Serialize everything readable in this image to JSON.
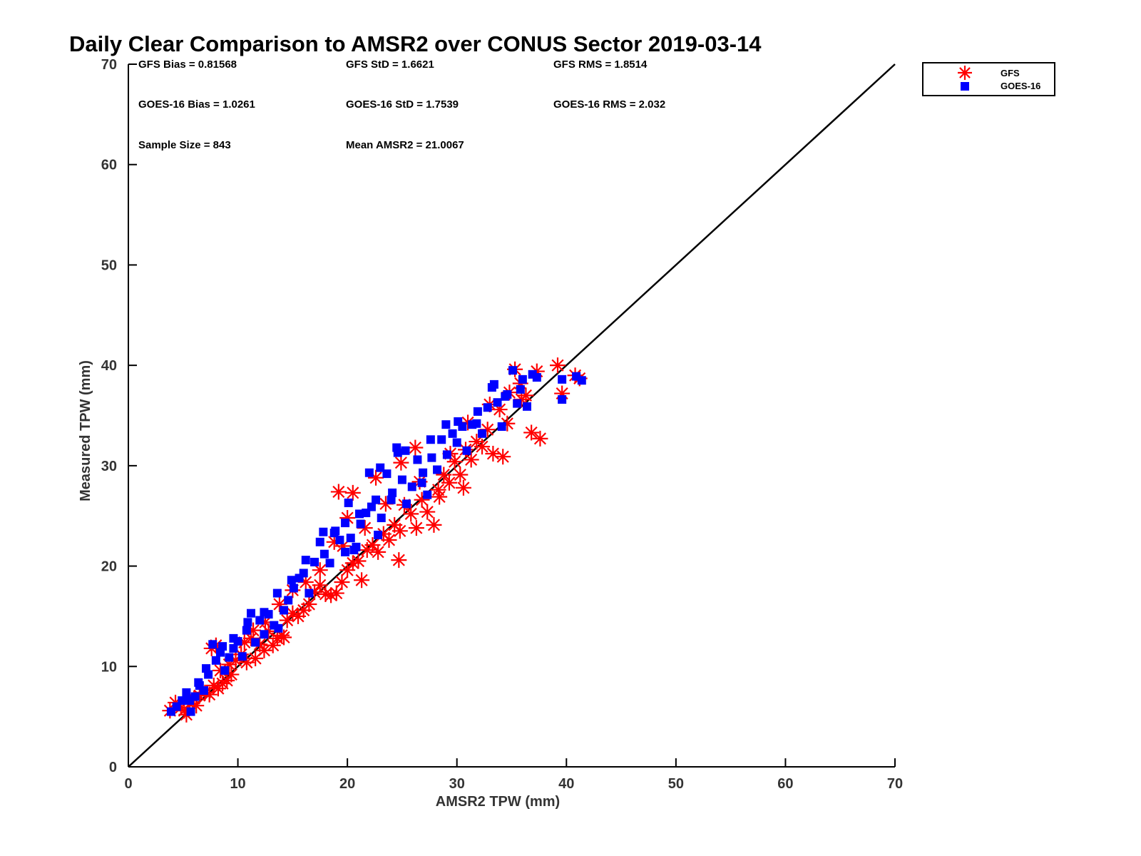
{
  "chart_data": {
    "type": "scatter",
    "title": "Daily Clear Comparison to AMSR2 over CONUS Sector 2019-03-14",
    "xlabel": "AMSR2 TPW (mm)",
    "ylabel": "Measured TPW (mm)",
    "xlim": [
      0,
      70
    ],
    "ylim": [
      0,
      70
    ],
    "xticks": [
      "0",
      "10",
      "20",
      "30",
      "40",
      "50",
      "60",
      "70"
    ],
    "yticks": [
      "0",
      "10",
      "20",
      "30",
      "40",
      "50",
      "60",
      "70"
    ],
    "grid": false,
    "legend_position": "top-right, outside",
    "reference_line": {
      "x": [
        0,
        70
      ],
      "y": [
        0,
        70
      ],
      "color": "#000000"
    },
    "stats": {
      "gfs_bias": "GFS Bias = 0.81568",
      "gfs_std": "GFS StD = 1.6621",
      "gfs_rms": "GFS RMS = 1.8514",
      "goes_bias": "GOES-16 Bias = 1.0261",
      "goes_std": "GOES-16 StD = 1.7539",
      "goes_rms": "GOES-16 RMS = 2.032",
      "sample_size": "Sample Size = 843",
      "mean_amsr2": "Mean AMSR2 = 21.0067"
    },
    "series": [
      {
        "name": "GFS",
        "marker": "asterisk",
        "color": "#ff0000",
        "points": [
          [
            3.8,
            5.6
          ],
          [
            4.3,
            6.4
          ],
          [
            4.8,
            5.9
          ],
          [
            5.3,
            5.2
          ],
          [
            5.6,
            6.3
          ],
          [
            6.0,
            6.8
          ],
          [
            6.5,
            7.1
          ],
          [
            7.0,
            7.4
          ],
          [
            7.4,
            7.2
          ],
          [
            7.8,
            8.1
          ],
          [
            8.2,
            7.8
          ],
          [
            8.6,
            8.3
          ],
          [
            9.0,
            8.6
          ],
          [
            9.4,
            9.2
          ],
          [
            7.6,
            11.8
          ],
          [
            8.0,
            12.1
          ],
          [
            9.8,
            10.6
          ],
          [
            10.3,
            11.2
          ],
          [
            10.8,
            10.4
          ],
          [
            11.2,
            12.8
          ],
          [
            11.6,
            10.8
          ],
          [
            12.0,
            12.2
          ],
          [
            12.4,
            11.6
          ],
          [
            12.8,
            13.5
          ],
          [
            13.2,
            12.1
          ],
          [
            13.6,
            12.8
          ],
          [
            14.0,
            13.1
          ],
          [
            14.5,
            14.6
          ],
          [
            15.0,
            15.3
          ],
          [
            15.5,
            15.0
          ],
          [
            16.0,
            15.6
          ],
          [
            16.5,
            16.2
          ],
          [
            17.0,
            17.4
          ],
          [
            17.5,
            18.1
          ],
          [
            18.0,
            17.2
          ],
          [
            18.5,
            17.1
          ],
          [
            19.0,
            17.3
          ],
          [
            19.5,
            18.4
          ],
          [
            20.0,
            19.6
          ],
          [
            20.5,
            20.3
          ],
          [
            21.0,
            20.5
          ],
          [
            21.3,
            18.6
          ],
          [
            21.8,
            21.6
          ],
          [
            22.3,
            22.1
          ],
          [
            22.8,
            21.4
          ],
          [
            23.3,
            23.2
          ],
          [
            23.8,
            22.6
          ],
          [
            24.3,
            24.1
          ],
          [
            24.7,
            20.6
          ],
          [
            24.8,
            23.5
          ],
          [
            25.2,
            26.1
          ],
          [
            25.8,
            25.2
          ],
          [
            26.3,
            23.8
          ],
          [
            26.8,
            26.6
          ],
          [
            27.3,
            25.4
          ],
          [
            27.9,
            24.1
          ],
          [
            28.3,
            27.6
          ],
          [
            28.8,
            29.1
          ],
          [
            29.3,
            28.3
          ],
          [
            29.8,
            30.4
          ],
          [
            30.3,
            29.1
          ],
          [
            30.8,
            31.6
          ],
          [
            31.3,
            30.6
          ],
          [
            31.8,
            32.4
          ],
          [
            32.3,
            31.9
          ],
          [
            32.8,
            33.6
          ],
          [
            33.3,
            31.2
          ],
          [
            33.9,
            35.6
          ],
          [
            34.2,
            30.9
          ],
          [
            34.8,
            37.3
          ],
          [
            35.3,
            39.6
          ],
          [
            35.8,
            38.2
          ],
          [
            36.3,
            37.0
          ],
          [
            36.8,
            33.3
          ],
          [
            37.3,
            39.4
          ],
          [
            37.6,
            32.7
          ],
          [
            39.2,
            40.0
          ],
          [
            39.6,
            37.2
          ],
          [
            40.8,
            39.0
          ],
          [
            41.2,
            38.7
          ],
          [
            19.2,
            27.4
          ],
          [
            20.5,
            27.3
          ],
          [
            20.0,
            24.8
          ],
          [
            23.5,
            26.2
          ],
          [
            24.9,
            30.3
          ],
          [
            26.2,
            31.8
          ],
          [
            22.6,
            28.8
          ],
          [
            18.8,
            22.4
          ],
          [
            17.5,
            19.6
          ],
          [
            16.2,
            18.4
          ],
          [
            15.0,
            17.6
          ],
          [
            13.8,
            16.2
          ],
          [
            12.5,
            14.4
          ],
          [
            11.4,
            13.6
          ],
          [
            10.6,
            12.4
          ],
          [
            9.2,
            10.2
          ],
          [
            8.4,
            9.6
          ],
          [
            6.2,
            6.1
          ],
          [
            5.1,
            5.6
          ],
          [
            14.2,
            12.9
          ],
          [
            19.6,
            22.0
          ],
          [
            21.6,
            23.8
          ],
          [
            26.6,
            28.4
          ],
          [
            29.4,
            31.2
          ],
          [
            31.0,
            34.3
          ],
          [
            33.0,
            36.1
          ],
          [
            34.6,
            34.2
          ],
          [
            35.9,
            36.6
          ],
          [
            30.6,
            27.8
          ],
          [
            28.4,
            26.9
          ]
        ]
      },
      {
        "name": "GOES-16",
        "marker": "square",
        "color": "#0000ff",
        "points": [
          [
            3.9,
            5.5
          ],
          [
            4.4,
            6.0
          ],
          [
            4.9,
            6.6
          ],
          [
            5.3,
            7.4
          ],
          [
            5.7,
            5.5
          ],
          [
            6.1,
            7.0
          ],
          [
            6.5,
            8.1
          ],
          [
            6.9,
            7.6
          ],
          [
            7.3,
            9.2
          ],
          [
            7.7,
            12.2
          ],
          [
            8.0,
            10.6
          ],
          [
            8.4,
            11.4
          ],
          [
            8.8,
            9.6
          ],
          [
            9.2,
            10.9
          ],
          [
            9.6,
            11.8
          ],
          [
            10.0,
            12.5
          ],
          [
            10.4,
            11.0
          ],
          [
            10.8,
            13.6
          ],
          [
            11.2,
            15.3
          ],
          [
            11.6,
            12.4
          ],
          [
            12.0,
            14.6
          ],
          [
            12.4,
            13.2
          ],
          [
            12.8,
            15.2
          ],
          [
            13.3,
            14.1
          ],
          [
            13.7,
            13.8
          ],
          [
            14.2,
            15.6
          ],
          [
            14.6,
            16.6
          ],
          [
            15.1,
            17.8
          ],
          [
            15.6,
            18.8
          ],
          [
            16.0,
            19.3
          ],
          [
            16.5,
            17.3
          ],
          [
            17.0,
            20.4
          ],
          [
            17.5,
            22.4
          ],
          [
            17.9,
            21.2
          ],
          [
            18.4,
            20.3
          ],
          [
            18.8,
            23.3
          ],
          [
            19.3,
            22.6
          ],
          [
            19.8,
            21.4
          ],
          [
            20.3,
            22.8
          ],
          [
            20.8,
            21.9
          ],
          [
            21.2,
            24.2
          ],
          [
            21.7,
            25.3
          ],
          [
            22.2,
            25.9
          ],
          [
            22.6,
            26.6
          ],
          [
            23.1,
            24.8
          ],
          [
            23.6,
            29.2
          ],
          [
            24.1,
            27.3
          ],
          [
            24.5,
            31.8
          ],
          [
            25.0,
            28.6
          ],
          [
            25.4,
            26.2
          ],
          [
            25.9,
            27.9
          ],
          [
            26.4,
            30.6
          ],
          [
            26.8,
            28.3
          ],
          [
            27.3,
            27.1
          ],
          [
            27.7,
            30.8
          ],
          [
            28.2,
            29.6
          ],
          [
            28.6,
            32.6
          ],
          [
            29.1,
            31.1
          ],
          [
            29.6,
            33.2
          ],
          [
            30.0,
            32.3
          ],
          [
            30.5,
            33.9
          ],
          [
            30.9,
            31.5
          ],
          [
            31.4,
            34.1
          ],
          [
            31.9,
            35.4
          ],
          [
            32.3,
            33.2
          ],
          [
            32.8,
            35.8
          ],
          [
            33.2,
            37.8
          ],
          [
            33.7,
            36.3
          ],
          [
            34.1,
            33.9
          ],
          [
            34.6,
            37.1
          ],
          [
            35.1,
            39.5
          ],
          [
            35.5,
            36.2
          ],
          [
            36.0,
            38.6
          ],
          [
            36.4,
            35.9
          ],
          [
            36.9,
            39.1
          ],
          [
            37.3,
            38.8
          ],
          [
            39.6,
            36.6
          ],
          [
            39.6,
            38.6
          ],
          [
            41.4,
            38.5
          ],
          [
            40.9,
            38.9
          ],
          [
            17.8,
            23.4
          ],
          [
            18.9,
            23.5
          ],
          [
            20.1,
            26.3
          ],
          [
            22.0,
            29.3
          ],
          [
            23.0,
            29.8
          ],
          [
            24.6,
            31.3
          ],
          [
            25.3,
            31.5
          ],
          [
            26.9,
            29.3
          ],
          [
            21.1,
            25.2
          ],
          [
            19.8,
            24.3
          ],
          [
            16.2,
            20.6
          ],
          [
            14.9,
            18.6
          ],
          [
            13.6,
            17.3
          ],
          [
            12.4,
            15.4
          ],
          [
            10.9,
            14.4
          ],
          [
            9.6,
            12.8
          ],
          [
            8.6,
            12.0
          ],
          [
            7.1,
            9.8
          ],
          [
            6.4,
            8.4
          ],
          [
            5.6,
            6.6
          ],
          [
            27.6,
            32.6
          ],
          [
            29.0,
            34.1
          ],
          [
            30.1,
            34.4
          ],
          [
            31.8,
            34.2
          ],
          [
            33.4,
            38.1
          ],
          [
            34.4,
            36.9
          ],
          [
            35.8,
            37.6
          ],
          [
            24.0,
            26.6
          ],
          [
            22.8,
            23.1
          ],
          [
            20.6,
            21.6
          ]
        ]
      }
    ]
  }
}
